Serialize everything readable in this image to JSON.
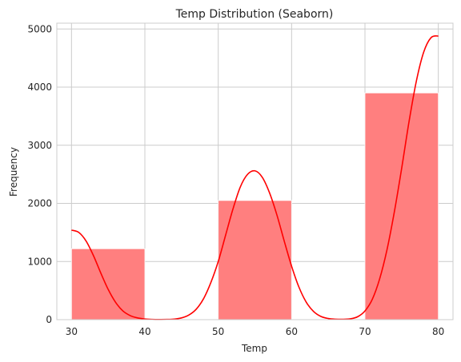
{
  "chart_data": {
    "type": "bar",
    "title": "Temp Distribution (Seaborn)",
    "xlabel": "Temp",
    "ylabel": "Frequency",
    "xlim": [
      28,
      82
    ],
    "ylim": [
      0,
      5100
    ],
    "x_ticks": [
      30,
      40,
      50,
      60,
      70,
      80
    ],
    "y_ticks": [
      0,
      1000,
      2000,
      3000,
      4000,
      5000
    ],
    "bins": [
      {
        "x0": 30,
        "x1": 40,
        "value": 1220
      },
      {
        "x0": 40,
        "x1": 50,
        "value": 0
      },
      {
        "x0": 50,
        "x1": 60,
        "value": 2050
      },
      {
        "x0": 60,
        "x1": 70,
        "value": 0
      },
      {
        "x0": 70,
        "x1": 80,
        "value": 3900
      }
    ],
    "kde": {
      "x": [
        30,
        31,
        32,
        33,
        34,
        35,
        36,
        37,
        38,
        39,
        40,
        41,
        42,
        43,
        44,
        45,
        46,
        47,
        48,
        49,
        50,
        51,
        52,
        53,
        54,
        55,
        56,
        57,
        58,
        59,
        60,
        61,
        62,
        63,
        64,
        65,
        66,
        67,
        68,
        69,
        70,
        71,
        72,
        73,
        74,
        75,
        76,
        77,
        78,
        79,
        80
      ],
      "y": [
        1540,
        1500,
        1350,
        1100,
        800,
        520,
        300,
        150,
        70,
        30,
        12,
        5,
        3,
        4,
        10,
        30,
        80,
        180,
        360,
        640,
        1000,
        1450,
        1900,
        2280,
        2500,
        2560,
        2450,
        2180,
        1800,
        1350,
        920,
        560,
        300,
        140,
        55,
        20,
        8,
        6,
        15,
        50,
        150,
        350,
        700,
        1200,
        1850,
        2600,
        3400,
        4100,
        4600,
        4850,
        4880
      ]
    },
    "bar_color": "#ff7f7f",
    "line_color": "#ff0000",
    "grid": true
  }
}
